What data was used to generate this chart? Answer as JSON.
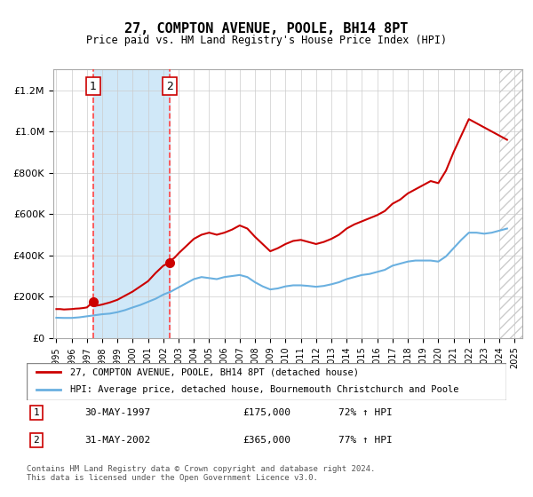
{
  "title": "27, COMPTON AVENUE, POOLE, BH14 8PT",
  "subtitle": "Price paid vs. HM Land Registry's House Price Index (HPI)",
  "legend_line1": "27, COMPTON AVENUE, POOLE, BH14 8PT (detached house)",
  "legend_line2": "HPI: Average price, detached house, Bournemouth Christchurch and Poole",
  "transaction1_label": "1",
  "transaction1_date": "30-MAY-1997",
  "transaction1_price": "£175,000",
  "transaction1_hpi": "72% ↑ HPI",
  "transaction1_year": 1997.41,
  "transaction1_value": 175000,
  "transaction2_label": "2",
  "transaction2_date": "31-MAY-2002",
  "transaction2_price": "£365,000",
  "transaction2_hpi": "77% ↑ HPI",
  "transaction2_year": 2002.41,
  "transaction2_value": 365000,
  "footer": "Contains HM Land Registry data © Crown copyright and database right 2024.\nThis data is licensed under the Open Government Licence v3.0.",
  "hpi_color": "#6ab0e0",
  "price_color": "#cc0000",
  "marker_color": "#cc0000",
  "vline_color": "#ff4444",
  "shade_color": "#d0e8f8",
  "hatched_color": "#e8e8e8",
  "ylim": [
    0,
    1300000
  ],
  "xlim_start": 1995,
  "xlim_end": 2025.5,
  "background_color": "#ffffff",
  "hpi_data_years": [
    1995,
    1995.5,
    1996,
    1996.5,
    1997,
    1997.5,
    1998,
    1998.5,
    1999,
    1999.5,
    2000,
    2000.5,
    2001,
    2001.5,
    2002,
    2002.5,
    2003,
    2003.5,
    2004,
    2004.5,
    2005,
    2005.5,
    2006,
    2006.5,
    2007,
    2007.5,
    2008,
    2008.5,
    2009,
    2009.5,
    2010,
    2010.5,
    2011,
    2011.5,
    2012,
    2012.5,
    2013,
    2013.5,
    2014,
    2014.5,
    2015,
    2015.5,
    2016,
    2016.5,
    2017,
    2017.5,
    2018,
    2018.5,
    2019,
    2019.5,
    2020,
    2020.5,
    2021,
    2021.5,
    2022,
    2022.5,
    2023,
    2023.5,
    2024,
    2024.5
  ],
  "hpi_data_values": [
    98000,
    97000,
    97000,
    100000,
    105000,
    110000,
    115000,
    118000,
    125000,
    135000,
    148000,
    160000,
    175000,
    190000,
    210000,
    225000,
    245000,
    265000,
    285000,
    295000,
    290000,
    285000,
    295000,
    300000,
    305000,
    295000,
    270000,
    250000,
    235000,
    240000,
    250000,
    255000,
    255000,
    252000,
    248000,
    252000,
    260000,
    270000,
    285000,
    295000,
    305000,
    310000,
    320000,
    330000,
    350000,
    360000,
    370000,
    375000,
    375000,
    375000,
    370000,
    395000,
    435000,
    475000,
    510000,
    510000,
    505000,
    510000,
    520000,
    530000
  ],
  "price_data_years": [
    1995,
    1995.25,
    1995.5,
    1995.75,
    1996,
    1996.25,
    1996.5,
    1996.75,
    1997,
    1997.41,
    1997.5,
    1997.75,
    1998,
    1998.5,
    1999,
    1999.5,
    2000,
    2000.5,
    2001,
    2001.5,
    2002,
    2002.41,
    2002.5,
    2002.75,
    2003,
    2003.5,
    2004,
    2004.5,
    2005,
    2005.5,
    2006,
    2006.5,
    2007,
    2007.5,
    2008,
    2008.5,
    2009,
    2009.5,
    2010,
    2010.5,
    2011,
    2011.5,
    2012,
    2012.5,
    2013,
    2013.5,
    2014,
    2014.5,
    2015,
    2015.5,
    2016,
    2016.5,
    2017,
    2017.5,
    2018,
    2018.5,
    2019,
    2019.5,
    2020,
    2020.5,
    2021,
    2021.5,
    2022,
    2022.5,
    2023,
    2023.5,
    2024,
    2024.5
  ],
  "price_data_values": [
    140000,
    140000,
    138000,
    139000,
    140000,
    142000,
    143000,
    145000,
    148000,
    175000,
    155000,
    158000,
    162000,
    172000,
    185000,
    205000,
    225000,
    250000,
    275000,
    315000,
    350000,
    365000,
    375000,
    390000,
    410000,
    445000,
    480000,
    500000,
    510000,
    500000,
    510000,
    525000,
    545000,
    530000,
    490000,
    455000,
    420000,
    435000,
    455000,
    470000,
    475000,
    465000,
    455000,
    465000,
    480000,
    500000,
    530000,
    550000,
    565000,
    580000,
    595000,
    615000,
    650000,
    670000,
    700000,
    720000,
    740000,
    760000,
    750000,
    810000,
    900000,
    980000,
    1060000,
    1040000,
    1020000,
    1000000,
    980000,
    960000
  ]
}
